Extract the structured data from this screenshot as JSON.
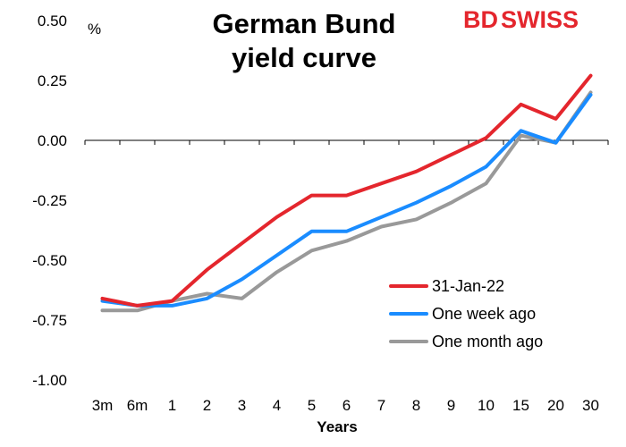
{
  "logo": {
    "bd": "BD",
    "swiss": "SWISS",
    "bd_color": "#e4262d",
    "swiss_color": "#e4262d"
  },
  "chart_data": {
    "type": "line",
    "title": "German Bund yield curve",
    "title_lines": [
      "German Bund",
      "yield curve"
    ],
    "unit": "%",
    "xlabel": "Years",
    "ylabel": "",
    "categories": [
      "3m",
      "6m",
      "1",
      "2",
      "3",
      "4",
      "5",
      "6",
      "7",
      "8",
      "9",
      "10",
      "15",
      "20",
      "30"
    ],
    "ylim": [
      -1.0,
      0.5
    ],
    "yticks": [
      0.5,
      0.25,
      0.0,
      -0.25,
      -0.5,
      -0.75,
      -1.0
    ],
    "ytick_labels": [
      "0.50",
      "0.25",
      "0.00",
      "-0.25",
      "-0.50",
      "-0.75",
      "-1.00"
    ],
    "grid": false,
    "legend_position": "bottom-right",
    "series": [
      {
        "name": "31-Jan-22",
        "color": "#e4262d",
        "values": [
          -0.66,
          -0.69,
          -0.67,
          -0.54,
          -0.43,
          -0.32,
          -0.23,
          -0.23,
          -0.18,
          -0.13,
          -0.06,
          0.01,
          0.15,
          0.09,
          0.27
        ]
      },
      {
        "name": "One week ago",
        "color": "#1a8cff",
        "values": [
          -0.67,
          -0.69,
          -0.69,
          -0.66,
          -0.58,
          -0.48,
          -0.38,
          -0.38,
          -0.32,
          -0.26,
          -0.19,
          -0.11,
          0.04,
          -0.01,
          0.19
        ]
      },
      {
        "name": "One month ago",
        "color": "#999999",
        "values": [
          -0.71,
          -0.71,
          -0.67,
          -0.64,
          -0.66,
          -0.55,
          -0.46,
          -0.42,
          -0.36,
          -0.33,
          -0.26,
          -0.18,
          0.02,
          -0.01,
          0.2
        ]
      }
    ]
  }
}
